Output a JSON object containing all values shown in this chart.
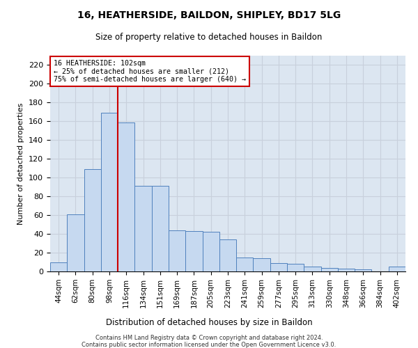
{
  "title": "16, HEATHERSIDE, BAILDON, SHIPLEY, BD17 5LG",
  "subtitle": "Size of property relative to detached houses in Baildon",
  "xlabel": "Distribution of detached houses by size in Baildon",
  "ylabel": "Number of detached properties",
  "categories": [
    "44sqm",
    "62sqm",
    "80sqm",
    "98sqm",
    "116sqm",
    "134sqm",
    "151sqm",
    "169sqm",
    "187sqm",
    "205sqm",
    "223sqm",
    "241sqm",
    "259sqm",
    "277sqm",
    "295sqm",
    "313sqm",
    "330sqm",
    "348sqm",
    "366sqm",
    "384sqm",
    "402sqm"
  ],
  "values": [
    10,
    61,
    109,
    169,
    159,
    91,
    91,
    44,
    43,
    42,
    34,
    15,
    14,
    9,
    8,
    5,
    4,
    3,
    2,
    0,
    5
  ],
  "bar_color": "#c6d9f0",
  "bar_edge_color": "#4f81bd",
  "grid_color": "#c8d0dc",
  "bg_color": "#dce6f1",
  "vline_x": 3.5,
  "vline_color": "#cc0000",
  "annotation_line1": "16 HEATHERSIDE: 102sqm",
  "annotation_line2": "← 25% of detached houses are smaller (212)",
  "annotation_line3": "75% of semi-detached houses are larger (640) →",
  "annotation_box_color": "#ffffff",
  "annotation_box_edge": "#cc0000",
  "ylim": [
    0,
    230
  ],
  "yticks": [
    0,
    20,
    40,
    60,
    80,
    100,
    120,
    140,
    160,
    180,
    200,
    220
  ],
  "footer1": "Contains HM Land Registry data © Crown copyright and database right 2024.",
  "footer2": "Contains public sector information licensed under the Open Government Licence v3.0."
}
